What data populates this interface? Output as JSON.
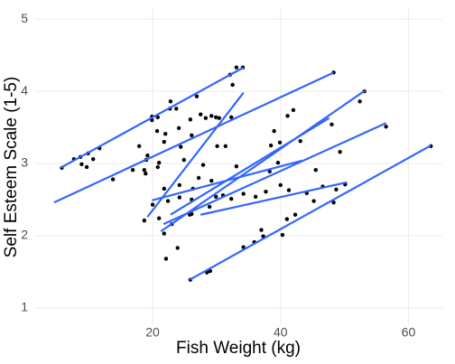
{
  "chart_data": {
    "type": "scatter",
    "xlabel": "Fish Weight (kg)",
    "ylabel": "Self Esteem Scale (1-5)",
    "xlim": [
      1.5,
      65.3
    ],
    "ylim": [
      0.76,
      5.14
    ],
    "xticks": [
      20,
      40,
      60
    ],
    "yticks": [
      1,
      2,
      3,
      4,
      5
    ],
    "grid": true,
    "color": "#000000",
    "line_color": "#3366ff",
    "x": [
      5.8,
      7.7,
      8.7,
      8.9,
      9.9,
      9.7,
      10.7,
      11.7,
      13.8,
      16.9,
      17.9,
      18.7,
      18.9,
      19.0,
      19.2,
      19.9,
      19.9,
      20.8,
      20.7,
      21.0,
      20.8,
      22.0,
      21.8,
      22.8,
      22.7,
      23.7,
      24.1,
      24.4,
      24.9,
      25.9,
      26.1,
      26.9,
      27.5,
      28.3,
      29.2,
      29.9,
      30.1,
      30.4,
      32.1,
      33.1,
      34.1,
      32.5,
      31.4,
      32.3,
      29.9,
      29.2,
      27.9,
      27.2,
      26.3,
      26.1,
      26.1,
      24.2,
      24.2,
      22.4,
      21.8,
      21.0,
      20.0,
      18.7,
      21.8,
      23.9,
      23.0,
      25.8,
      28.9,
      31.0,
      32.3,
      33.1,
      34.2,
      36.1,
      37.7,
      38.3,
      38.5,
      39.0,
      39.9,
      39.6,
      40.0,
      41.1,
      42.0,
      43.1,
      41.3,
      44.1,
      45.5,
      46.6,
      48.3,
      48.7,
      48.3,
      48.0,
      49.3,
      50.1,
      53.1,
      52.4,
      56.5,
      63.5,
      45.2,
      42.3,
      41.0,
      40.3,
      37.3,
      35.9,
      34.2,
      37.0,
      29.0,
      28.5,
      25.9,
      22.1
    ],
    "y": [
      2.94,
      3.06,
      3.09,
      2.99,
      3.14,
      2.95,
      3.06,
      3.21,
      2.78,
      2.91,
      3.24,
      2.91,
      2.86,
      3.05,
      3.11,
      3.6,
      3.65,
      3.64,
      3.45,
      3.01,
      2.95,
      3.41,
      3.3,
      3.86,
      3.76,
      3.76,
      3.49,
      3.23,
      3.05,
      3.61,
      3.39,
      3.93,
      3.68,
      3.63,
      3.66,
      3.64,
      3.24,
      3.63,
      4.23,
      4.33,
      4.33,
      4.09,
      3.24,
      3.64,
      2.54,
      2.76,
      2.98,
      2.8,
      2.65,
      2.5,
      2.3,
      2.7,
      2.53,
      2.48,
      2.65,
      2.24,
      2.43,
      2.21,
      2.03,
      1.83,
      2.16,
      2.29,
      2.4,
      2.56,
      2.51,
      2.96,
      2.58,
      2.54,
      2.61,
      2.89,
      3.25,
      3.45,
      3.29,
      3.01,
      2.7,
      3.66,
      3.74,
      3.31,
      2.63,
      2.59,
      2.91,
      2.68,
      2.46,
      2.64,
      4.26,
      3.54,
      3.16,
      2.71,
      4.0,
      3.86,
      3.51,
      3.24,
      2.48,
      2.29,
      2.23,
      2.01,
      1.99,
      1.91,
      1.84,
      2.08,
      1.51,
      1.49,
      1.39,
      1.68
    ],
    "lines": [
      {
        "x": [
          5.6,
          34.2
        ],
        "y": [
          2.94,
          4.33
        ]
      },
      {
        "x": [
          4.6,
          48.3
        ],
        "y": [
          2.46,
          4.26
        ]
      },
      {
        "x": [
          19.2,
          34.2
        ],
        "y": [
          2.26,
          3.98
        ]
      },
      {
        "x": [
          21.3,
          53.2
        ],
        "y": [
          2.06,
          4.01
        ]
      },
      {
        "x": [
          22.8,
          47.6
        ],
        "y": [
          2.29,
          3.63
        ]
      },
      {
        "x": [
          19.9,
          43.4
        ],
        "y": [
          2.49,
          3.04
        ]
      },
      {
        "x": [
          21.7,
          56.5
        ],
        "y": [
          2.16,
          3.56
        ]
      },
      {
        "x": [
          27.5,
          50.4
        ],
        "y": [
          2.29,
          2.74
        ]
      },
      {
        "x": [
          25.8,
          63.5
        ],
        "y": [
          1.39,
          3.25
        ]
      }
    ]
  }
}
